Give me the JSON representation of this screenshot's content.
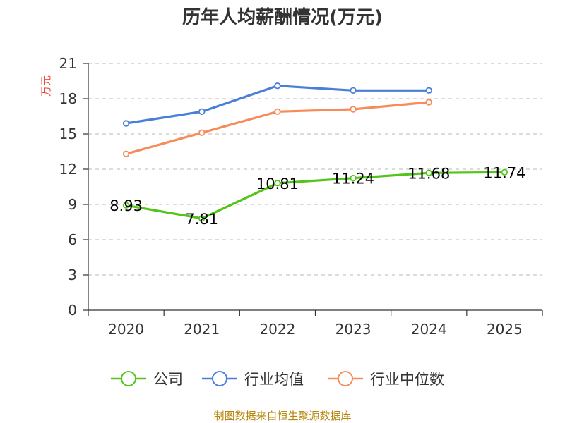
{
  "chart_data": {
    "type": "line",
    "title": "历年人均薪酬情况(万元)",
    "ylabel": "万元",
    "xlabel": "",
    "categories": [
      "2020",
      "2021",
      "2022",
      "2023",
      "2024",
      "2025"
    ],
    "ylim": [
      0,
      21
    ],
    "yticks": [
      0,
      3,
      6,
      9,
      12,
      15,
      18,
      21
    ],
    "grid": true,
    "legend_position": "bottom",
    "series": [
      {
        "name": "公司",
        "color": "#52c41a",
        "values": [
          8.93,
          7.81,
          10.81,
          11.24,
          11.68,
          11.74
        ],
        "labels": [
          "8.93",
          "7.81",
          "10.81",
          "11.24",
          "11.68",
          "11.74"
        ]
      },
      {
        "name": "行业均值",
        "color": "#4a7fd9",
        "values": [
          15.9,
          16.9,
          19.1,
          18.7,
          18.7,
          null
        ],
        "labels": []
      },
      {
        "name": "行业中位数",
        "color": "#f78c5a",
        "values": [
          13.3,
          15.1,
          16.9,
          17.1,
          17.7,
          null
        ],
        "labels": []
      }
    ]
  },
  "source_text": "制图数据来自恒生聚源数据库"
}
